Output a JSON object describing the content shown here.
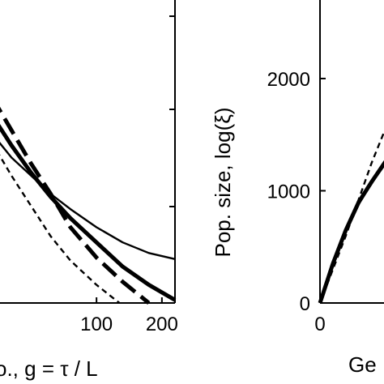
{
  "chart_data": [
    {
      "type": "line",
      "xlabel": "o., g = τ / L",
      "ylabel": "",
      "x_ticks": [
        100,
        200
      ],
      "xlim": [
        -60,
        220
      ],
      "ylim": [
        0,
        1
      ],
      "series": [
        {
          "style": "thin-solid",
          "x": [
            -60,
            -30,
            0,
            30,
            60,
            100,
            140,
            180,
            220
          ],
          "y": [
            0.56,
            0.48,
            0.42,
            0.36,
            0.31,
            0.25,
            0.2,
            0.165,
            0.145
          ]
        },
        {
          "style": "thick-solid",
          "x": [
            -60,
            -30,
            0,
            30,
            60,
            100,
            140,
            180,
            220
          ],
          "y": [
            0.62,
            0.52,
            0.43,
            0.35,
            0.28,
            0.2,
            0.12,
            0.06,
            0.01
          ]
        },
        {
          "style": "thick-dashed",
          "x": [
            -60,
            -30,
            0,
            30,
            60,
            100,
            140,
            180
          ],
          "y": [
            0.68,
            0.57,
            0.46,
            0.36,
            0.25,
            0.15,
            0.07,
            0.0
          ]
        },
        {
          "style": "thin-dashed",
          "x": [
            -60,
            -30,
            0,
            30,
            60,
            100,
            135
          ],
          "y": [
            0.53,
            0.42,
            0.32,
            0.22,
            0.14,
            0.06,
            0.0
          ]
        }
      ]
    },
    {
      "type": "line",
      "xlabel": "Ge",
      "ylabel": "Pop. size, log(ξ)",
      "x_ticks": [
        0
      ],
      "y_ticks": [
        0,
        1000,
        2000
      ],
      "xlim": [
        0,
        100
      ],
      "ylim": [
        0,
        2700
      ],
      "series": [
        {
          "style": "thin-dashed",
          "x": [
            0,
            10,
            20,
            30
          ],
          "y": [
            0,
            600,
            1250,
            1820
          ]
        },
        {
          "style": "thick-solid",
          "x": [
            0,
            5,
            10,
            15,
            20,
            25,
            30
          ],
          "y": [
            0,
            350,
            650,
            900,
            1080,
            1250,
            1400
          ]
        },
        {
          "style": "thin-solid",
          "x": [
            0,
            5,
            10,
            15,
            20,
            25,
            30
          ],
          "y": [
            0,
            340,
            630,
            880,
            1070,
            1230,
            1350
          ]
        }
      ]
    }
  ]
}
